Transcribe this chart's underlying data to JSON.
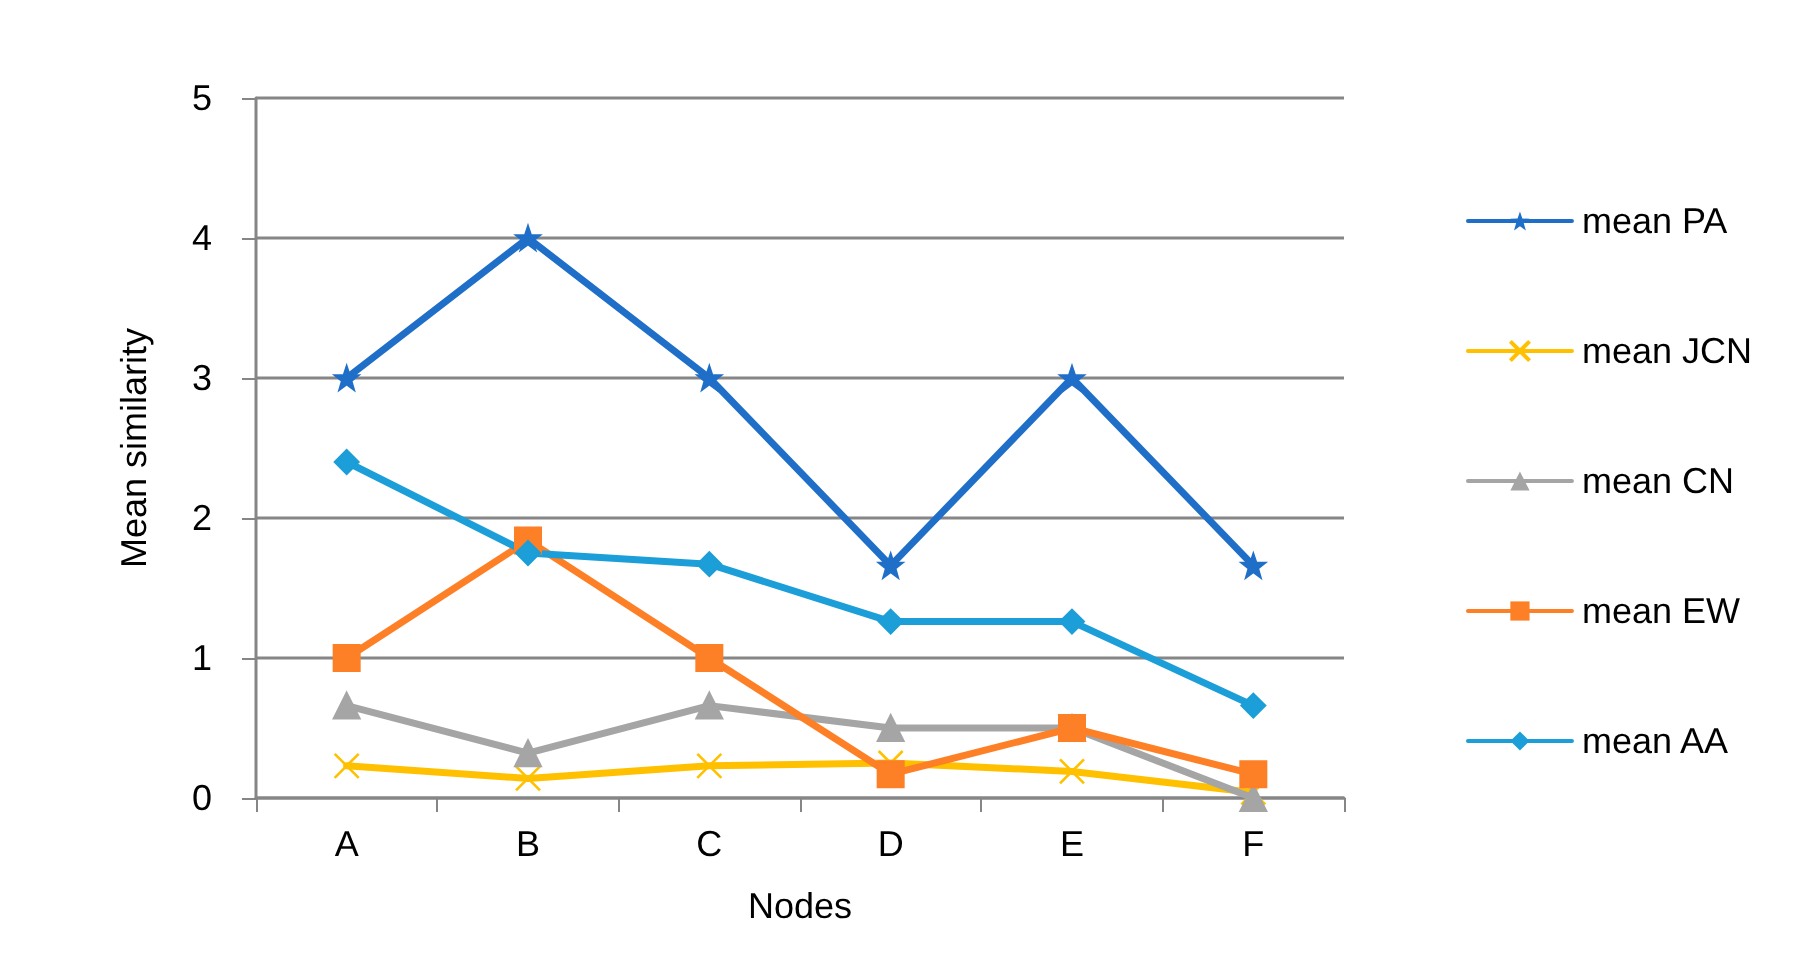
{
  "chart_data": {
    "type": "line",
    "xlabel": "Nodes",
    "ylabel": "Mean similarity",
    "categories": [
      "A",
      "B",
      "C",
      "D",
      "E",
      "F"
    ],
    "series": [
      {
        "name": "mean PA",
        "color": "#1f6fc8",
        "marker": "star",
        "values": [
          3,
          4,
          3,
          1.66,
          3,
          1.66
        ]
      },
      {
        "name": "mean JCN",
        "color": "#ffc000",
        "marker": "cross",
        "values": [
          0.23,
          0.14,
          0.23,
          0.25,
          0.19,
          0.04
        ]
      },
      {
        "name": "mean CN",
        "color": "#a5a5a5",
        "marker": "triangle",
        "values": [
          0.66,
          0.32,
          0.66,
          0.5,
          0.5,
          0
        ]
      },
      {
        "name": "mean EW",
        "color": "#fd7f26",
        "marker": "square",
        "values": [
          1,
          1.84,
          1,
          0.17,
          0.5,
          0.17
        ]
      },
      {
        "name": "mean AA",
        "color": "#1c9ed8",
        "marker": "diamond",
        "values": [
          2.4,
          1.75,
          1.67,
          1.26,
          1.26,
          0.66
        ]
      }
    ],
    "ylim": [
      0,
      5
    ],
    "yticks": [
      0,
      1,
      2,
      3,
      4,
      5
    ],
    "grid": "y",
    "legend": "right",
    "line_style": "solid"
  }
}
